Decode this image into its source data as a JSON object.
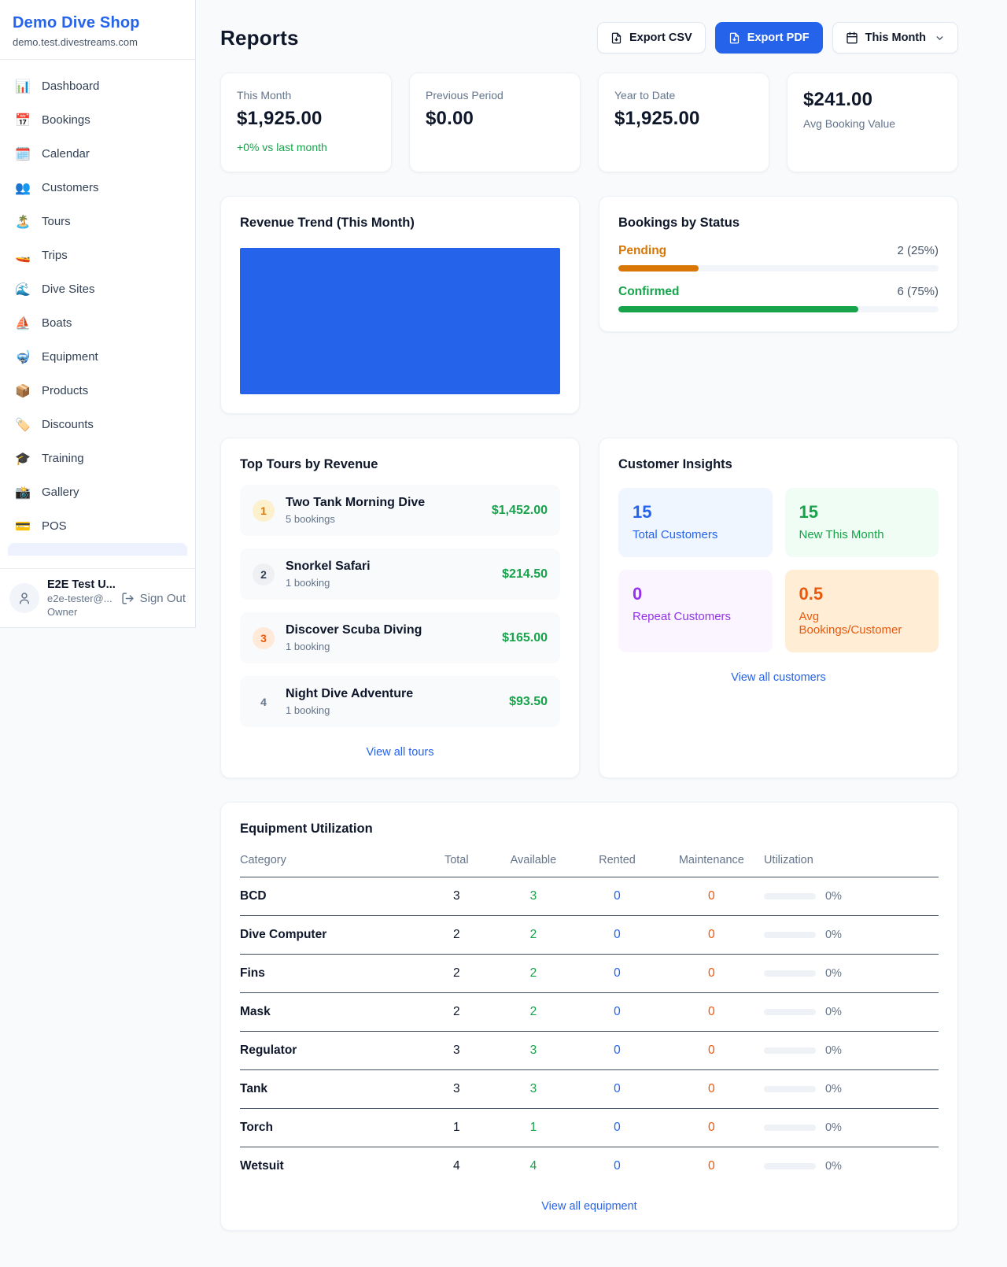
{
  "colors": {
    "accent_blue": "#2563eb",
    "green": "#16a34a",
    "orange": "#d97706",
    "deep_orange": "#ea580c",
    "purple": "#9333ea",
    "page_bg": "#f8fafc"
  },
  "sidebar": {
    "brand": {
      "name": "Demo Dive Shop",
      "domain": "demo.test.divestreams.com"
    },
    "nav": [
      {
        "icon": "📊",
        "label": "Dashboard"
      },
      {
        "icon": "📅",
        "label": "Bookings"
      },
      {
        "icon": "🗓️",
        "label": "Calendar"
      },
      {
        "icon": "👥",
        "label": "Customers"
      },
      {
        "icon": "🏝️",
        "label": "Tours"
      },
      {
        "icon": "🚤",
        "label": "Trips"
      },
      {
        "icon": "🌊",
        "label": "Dive Sites"
      },
      {
        "icon": "⛵",
        "label": "Boats"
      },
      {
        "icon": "🤿",
        "label": "Equipment"
      },
      {
        "icon": "📦",
        "label": "Products"
      },
      {
        "icon": "🏷️",
        "label": "Discounts"
      },
      {
        "icon": "🎓",
        "label": "Training"
      },
      {
        "icon": "📸",
        "label": "Gallery"
      },
      {
        "icon": "💳",
        "label": "POS"
      }
    ],
    "user": {
      "name": "E2E Test U...",
      "email": "e2e-tester@...",
      "role": "Owner",
      "sign_out": "Sign Out"
    }
  },
  "header": {
    "title": "Reports",
    "export_csv": "Export CSV",
    "export_pdf": "Export PDF",
    "period": "This Month"
  },
  "stats": [
    {
      "label": "This Month",
      "value": "$1,925.00",
      "delta": "+0% vs last month"
    },
    {
      "label": "Previous Period",
      "value": "$0.00"
    },
    {
      "label": "Year to Date",
      "value": "$1,925.00"
    },
    {
      "label": "Avg Booking Value",
      "value": "$241.00"
    }
  ],
  "revenue_trend": {
    "title": "Revenue Trend (This Month)"
  },
  "chart_data": [
    {
      "type": "bar",
      "title": "Revenue Trend (This Month)",
      "categories": [
        "This Month"
      ],
      "values": [
        1925
      ],
      "xlabel": "",
      "ylabel": "",
      "note": "single solid bar filling entire plot area, no axes or gridlines",
      "bar_color": "#2563eb"
    },
    {
      "type": "bar",
      "title": "Bookings by Status",
      "categories": [
        "Pending",
        "Confirmed"
      ],
      "values": [
        25,
        75
      ],
      "value_labels": [
        "2 (25%)",
        "6 (75%)"
      ],
      "xlabel": "",
      "ylabel": "",
      "note": "horizontal progress bars, percent of total bookings",
      "bar_colors": [
        "#d97706",
        "#16a34a"
      ]
    }
  ],
  "bookings_by_status": {
    "title": "Bookings by Status",
    "items": [
      {
        "label": "Pending",
        "value": "2 (25%)",
        "pct": 25
      },
      {
        "label": "Confirmed",
        "value": "6 (75%)",
        "pct": 75
      }
    ]
  },
  "top_tours": {
    "title": "Top Tours by Revenue",
    "items": [
      {
        "rank": "1",
        "name": "Two Tank Morning Dive",
        "sub": "5 bookings",
        "revenue": "$1,452.00"
      },
      {
        "rank": "2",
        "name": "Snorkel Safari",
        "sub": "1 booking",
        "revenue": "$214.50"
      },
      {
        "rank": "3",
        "name": "Discover Scuba Diving",
        "sub": "1 booking",
        "revenue": "$165.00"
      },
      {
        "rank": "4",
        "name": "Night Dive Adventure",
        "sub": "1 booking",
        "revenue": "$93.50"
      }
    ],
    "link": "View all tours"
  },
  "customer_insights": {
    "title": "Customer Insights",
    "cards": [
      {
        "value": "15",
        "label": "Total Customers"
      },
      {
        "value": "15",
        "label": "New This Month"
      },
      {
        "value": "0",
        "label": "Repeat Customers"
      },
      {
        "value": "0.5",
        "label": "Avg Bookings/Customer"
      }
    ],
    "link": "View all customers"
  },
  "equipment": {
    "title": "Equipment Utilization",
    "columns": [
      "Category",
      "Total",
      "Available",
      "Rented",
      "Maintenance",
      "Utilization"
    ],
    "rows": [
      {
        "category": "BCD",
        "total": "3",
        "available": "3",
        "rented": "0",
        "maintenance": "0",
        "utilization_pct": 0,
        "utilization_label": "0%"
      },
      {
        "category": "Dive Computer",
        "total": "2",
        "available": "2",
        "rented": "0",
        "maintenance": "0",
        "utilization_pct": 0,
        "utilization_label": "0%"
      },
      {
        "category": "Fins",
        "total": "2",
        "available": "2",
        "rented": "0",
        "maintenance": "0",
        "utilization_pct": 0,
        "utilization_label": "0%"
      },
      {
        "category": "Mask",
        "total": "2",
        "available": "2",
        "rented": "0",
        "maintenance": "0",
        "utilization_pct": 0,
        "utilization_label": "0%"
      },
      {
        "category": "Regulator",
        "total": "3",
        "available": "3",
        "rented": "0",
        "maintenance": "0",
        "utilization_pct": 0,
        "utilization_label": "0%"
      },
      {
        "category": "Tank",
        "total": "3",
        "available": "3",
        "rented": "0",
        "maintenance": "0",
        "utilization_pct": 0,
        "utilization_label": "0%"
      },
      {
        "category": "Torch",
        "total": "1",
        "available": "1",
        "rented": "0",
        "maintenance": "0",
        "utilization_pct": 0,
        "utilization_label": "0%"
      },
      {
        "category": "Wetsuit",
        "total": "4",
        "available": "4",
        "rented": "0",
        "maintenance": "0",
        "utilization_pct": 0,
        "utilization_label": "0%"
      }
    ],
    "link": "View all equipment"
  }
}
